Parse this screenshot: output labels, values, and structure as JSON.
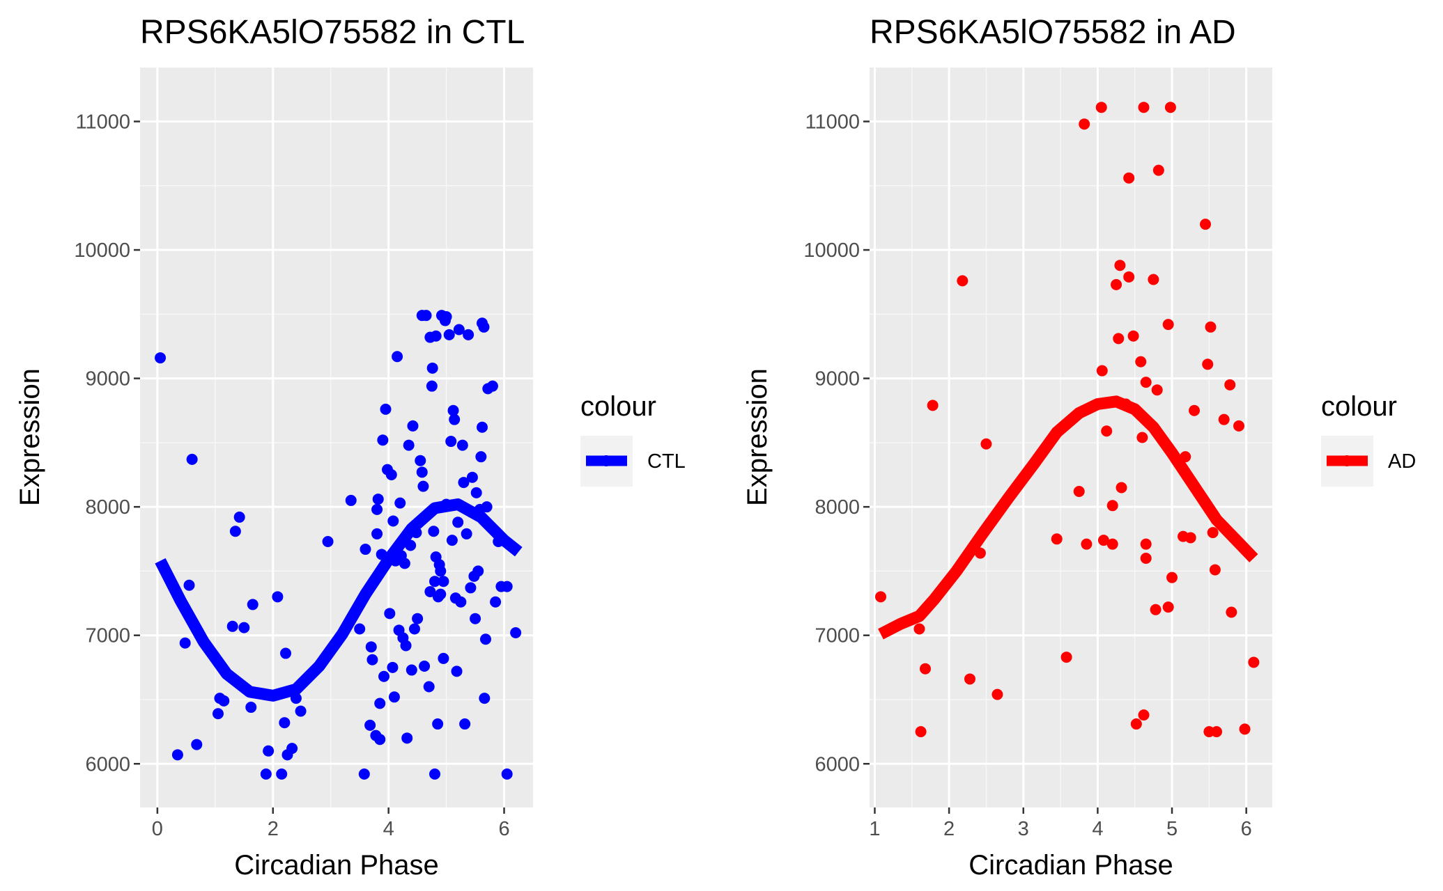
{
  "chart_data": [
    {
      "type": "scatter",
      "title": "RPS6KA5lO75582 in CTL",
      "xlabel": "Circadian Phase",
      "ylabel": "Expression",
      "xlim": [
        -0.3,
        6.5
      ],
      "ylim": [
        5660,
        11420
      ],
      "xticks": [
        0,
        2,
        4,
        6
      ],
      "yticks": [
        6000,
        7000,
        8000,
        9000,
        10000,
        11000
      ],
      "grid": true,
      "legend": {
        "title": "colour",
        "label": "CTL",
        "placement": "right"
      },
      "color": "#0000ff",
      "series": [
        {
          "name": "CTL",
          "points": [
            [
              0.05,
              9160
            ],
            [
              0.35,
              6070
            ],
            [
              0.48,
              6940
            ],
            [
              0.55,
              7390
            ],
            [
              0.6,
              8370
            ],
            [
              0.68,
              6150
            ],
            [
              1.05,
              6390
            ],
            [
              1.08,
              6510
            ],
            [
              1.15,
              6490
            ],
            [
              1.3,
              7070
            ],
            [
              1.35,
              7810
            ],
            [
              1.42,
              7920
            ],
            [
              1.5,
              7060
            ],
            [
              1.62,
              6440
            ],
            [
              1.65,
              7240
            ],
            [
              1.88,
              5920
            ],
            [
              1.92,
              6100
            ],
            [
              2.08,
              7300
            ],
            [
              2.15,
              5920
            ],
            [
              2.2,
              6320
            ],
            [
              2.22,
              6860
            ],
            [
              2.25,
              6070
            ],
            [
              2.33,
              6120
            ],
            [
              2.4,
              6510
            ],
            [
              2.48,
              6410
            ],
            [
              2.95,
              7730
            ],
            [
              3.35,
              8050
            ],
            [
              3.5,
              7050
            ],
            [
              3.58,
              5920
            ],
            [
              3.6,
              7670
            ],
            [
              3.68,
              6300
            ],
            [
              3.7,
              6910
            ],
            [
              3.72,
              6810
            ],
            [
              3.78,
              6220
            ],
            [
              3.8,
              7980
            ],
            [
              3.8,
              7790
            ],
            [
              3.82,
              8060
            ],
            [
              3.85,
              6470
            ],
            [
              3.85,
              6190
            ],
            [
              3.88,
              7630
            ],
            [
              3.9,
              8520
            ],
            [
              3.92,
              6680
            ],
            [
              3.95,
              8760
            ],
            [
              3.98,
              8290
            ],
            [
              4.02,
              7170
            ],
            [
              4.05,
              8250
            ],
            [
              4.07,
              6750
            ],
            [
              4.08,
              7890
            ],
            [
              4.1,
              6520
            ],
            [
              4.12,
              7580
            ],
            [
              4.15,
              9170
            ],
            [
              4.18,
              7040
            ],
            [
              4.2,
              8030
            ],
            [
              4.22,
              7620
            ],
            [
              4.25,
              6980
            ],
            [
              4.28,
              7560
            ],
            [
              4.3,
              6920
            ],
            [
              4.32,
              6200
            ],
            [
              4.35,
              8480
            ],
            [
              4.38,
              7700
            ],
            [
              4.4,
              6730
            ],
            [
              4.42,
              8630
            ],
            [
              4.45,
              7050
            ],
            [
              4.48,
              7800
            ],
            [
              4.5,
              7130
            ],
            [
              4.55,
              8360
            ],
            [
              4.58,
              8270
            ],
            [
              4.6,
              8160
            ],
            [
              4.65,
              9490
            ],
            [
              4.7,
              6600
            ],
            [
              4.72,
              7340
            ],
            [
              4.75,
              8940
            ],
            [
              4.76,
              9080
            ],
            [
              4.78,
              7810
            ],
            [
              4.8,
              7420
            ],
            [
              4.82,
              7610
            ],
            [
              4.85,
              6310
            ],
            [
              4.86,
              7300
            ],
            [
              4.88,
              7550
            ],
            [
              4.9,
              7500
            ],
            [
              4.92,
              9490
            ],
            [
              4.95,
              7420
            ],
            [
              4.98,
              9450
            ],
            [
              5.0,
              8020
            ],
            [
              5.05,
              9340
            ],
            [
              5.08,
              8510
            ],
            [
              5.1,
              7740
            ],
            [
              5.12,
              8750
            ],
            [
              5.14,
              8680
            ],
            [
              5.16,
              7290
            ],
            [
              5.18,
              6720
            ],
            [
              5.2,
              7880
            ],
            [
              5.22,
              9380
            ],
            [
              5.25,
              7260
            ],
            [
              5.28,
              8480
            ],
            [
              5.3,
              8190
            ],
            [
              5.32,
              6310
            ],
            [
              5.35,
              7790
            ],
            [
              5.38,
              9340
            ],
            [
              5.4,
              7970
            ],
            [
              5.42,
              7370
            ],
            [
              5.45,
              8230
            ],
            [
              5.48,
              7460
            ],
            [
              5.5,
              7130
            ],
            [
              5.52,
              8110
            ],
            [
              5.55,
              7500
            ],
            [
              5.58,
              7980
            ],
            [
              5.6,
              8390
            ],
            [
              5.62,
              8620
            ],
            [
              5.62,
              9430
            ],
            [
              5.65,
              9400
            ],
            [
              5.66,
              6510
            ],
            [
              5.68,
              6970
            ],
            [
              5.7,
              8000
            ],
            [
              5.72,
              8920
            ],
            [
              5.8,
              8940
            ],
            [
              5.85,
              7260
            ],
            [
              5.9,
              7730
            ],
            [
              5.95,
              7380
            ],
            [
              6.05,
              7380
            ],
            [
              6.05,
              5920
            ],
            [
              6.2,
              7020
            ],
            [
              4.58,
              9490
            ],
            [
              4.62,
              6760
            ],
            [
              4.82,
              9330
            ],
            [
              4.8,
              5920
            ],
            [
              5.0,
              9480
            ],
            [
              4.95,
              6820
            ],
            [
              4.72,
              9320
            ],
            [
              4.9,
              7320
            ]
          ]
        }
      ],
      "trend": {
        "name": "CTL",
        "points": [
          [
            0.05,
            7580
          ],
          [
            0.4,
            7270
          ],
          [
            0.8,
            6950
          ],
          [
            1.2,
            6700
          ],
          [
            1.6,
            6560
          ],
          [
            2.0,
            6530
          ],
          [
            2.4,
            6580
          ],
          [
            2.8,
            6760
          ],
          [
            3.2,
            7010
          ],
          [
            3.6,
            7320
          ],
          [
            4.0,
            7590
          ],
          [
            4.4,
            7830
          ],
          [
            4.8,
            7990
          ],
          [
            5.2,
            8020
          ],
          [
            5.6,
            7920
          ],
          [
            6.0,
            7740
          ],
          [
            6.25,
            7650
          ]
        ]
      }
    },
    {
      "type": "scatter",
      "title": "RPS6KA5lO75582 in AD",
      "xlabel": "Circadian Phase",
      "ylabel": "Expression",
      "xlim": [
        0.93,
        6.35
      ],
      "ylim": [
        5660,
        11420
      ],
      "xticks": [
        1,
        2,
        3,
        4,
        5,
        6
      ],
      "yticks": [
        6000,
        7000,
        8000,
        9000,
        10000,
        11000
      ],
      "grid": true,
      "legend": {
        "title": "colour",
        "label": "AD",
        "placement": "right"
      },
      "color": "#ff0000",
      "series": [
        {
          "name": "AD",
          "points": [
            [
              1.08,
              7300
            ],
            [
              1.6,
              7050
            ],
            [
              1.62,
              6250
            ],
            [
              1.68,
              6740
            ],
            [
              1.78,
              8790
            ],
            [
              2.18,
              9760
            ],
            [
              2.28,
              6660
            ],
            [
              2.42,
              7640
            ],
            [
              2.5,
              8490
            ],
            [
              2.65,
              6540
            ],
            [
              3.45,
              7750
            ],
            [
              3.58,
              6830
            ],
            [
              3.75,
              8120
            ],
            [
              3.82,
              10980
            ],
            [
              3.85,
              7710
            ],
            [
              4.05,
              11110
            ],
            [
              4.06,
              9060
            ],
            [
              4.08,
              7740
            ],
            [
              4.12,
              8590
            ],
            [
              4.2,
              8010
            ],
            [
              4.2,
              7710
            ],
            [
              4.25,
              9730
            ],
            [
              4.28,
              9310
            ],
            [
              4.3,
              9880
            ],
            [
              4.32,
              8150
            ],
            [
              4.38,
              8800
            ],
            [
              4.42,
              10560
            ],
            [
              4.42,
              9790
            ],
            [
              4.48,
              9330
            ],
            [
              4.52,
              6310
            ],
            [
              4.58,
              9130
            ],
            [
              4.6,
              8540
            ],
            [
              4.62,
              11110
            ],
            [
              4.62,
              6380
            ],
            [
              4.65,
              8970
            ],
            [
              4.65,
              7710
            ],
            [
              4.65,
              7600
            ],
            [
              4.75,
              9770
            ],
            [
              4.78,
              7200
            ],
            [
              4.8,
              8910
            ],
            [
              4.82,
              10620
            ],
            [
              4.95,
              7220
            ],
            [
              4.95,
              9420
            ],
            [
              4.98,
              11110
            ],
            [
              5.0,
              7450
            ],
            [
              5.15,
              7770
            ],
            [
              5.18,
              8390
            ],
            [
              5.25,
              7760
            ],
            [
              5.3,
              8750
            ],
            [
              5.45,
              10200
            ],
            [
              5.48,
              9110
            ],
            [
              5.5,
              6250
            ],
            [
              5.52,
              9400
            ],
            [
              5.55,
              7800
            ],
            [
              5.58,
              7510
            ],
            [
              5.6,
              6250
            ],
            [
              5.7,
              8680
            ],
            [
              5.78,
              8950
            ],
            [
              5.8,
              7180
            ],
            [
              5.9,
              8630
            ],
            [
              5.98,
              6270
            ],
            [
              6.1,
              6790
            ]
          ]
        }
      ],
      "trend": {
        "name": "AD",
        "points": [
          [
            1.08,
            7010
          ],
          [
            1.35,
            7090
          ],
          [
            1.6,
            7150
          ],
          [
            1.8,
            7280
          ],
          [
            2.1,
            7500
          ],
          [
            2.45,
            7790
          ],
          [
            2.8,
            8070
          ],
          [
            3.15,
            8340
          ],
          [
            3.45,
            8580
          ],
          [
            3.75,
            8730
          ],
          [
            4.0,
            8800
          ],
          [
            4.25,
            8820
          ],
          [
            4.5,
            8760
          ],
          [
            4.75,
            8620
          ],
          [
            5.0,
            8420
          ],
          [
            5.3,
            8160
          ],
          [
            5.6,
            7900
          ],
          [
            5.9,
            7720
          ],
          [
            6.1,
            7600
          ]
        ]
      }
    }
  ]
}
